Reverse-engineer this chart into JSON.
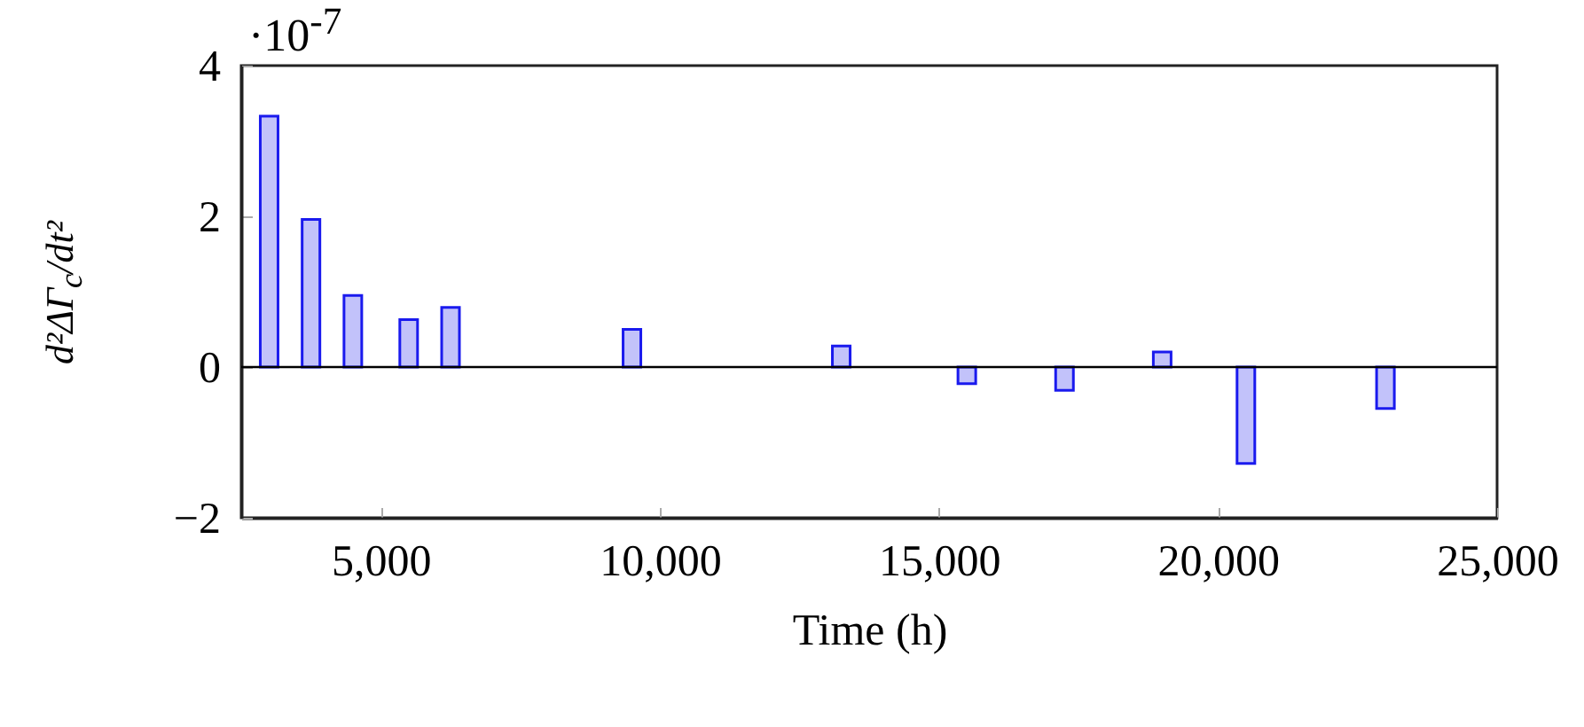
{
  "chart_data": {
    "type": "bar",
    "xlabel": "Time (h)",
    "ylabel": "d²ΔΓ$_{c}$/dt²",
    "annotations": [
      "·10$^{-7}$"
    ],
    "x": [
      3000,
      3750,
      4500,
      5500,
      6250,
      9500,
      13250,
      15500,
      17250,
      19000,
      20500,
      23000
    ],
    "series": [
      {
        "color": "#1a1aee",
        "values": [
          3.33,
          1.96,
          0.95,
          0.63,
          0.79,
          0.5,
          0.28,
          -0.22,
          -0.31,
          0.2,
          -1.28,
          -0.55
        ]
      }
    ],
    "xlim": [
      2500,
      25000
    ],
    "xticks": [
      {
        "value": 5000,
        "label": "5,000"
      },
      {
        "value": 10000,
        "label": "10,000"
      },
      {
        "value": 15000,
        "label": "15,000"
      },
      {
        "value": 20000,
        "label": "20,000"
      },
      {
        "value": 25000,
        "label": "25,000"
      }
    ],
    "ylim": [
      -2,
      4
    ],
    "yticks": [
      {
        "value": -2,
        "label": "−2"
      },
      0,
      2,
      4
    ],
    "ref_lines": [
      {
        "axis": "y",
        "value": 0,
        "color": "#000000"
      }
    ],
    "grid": false
  }
}
